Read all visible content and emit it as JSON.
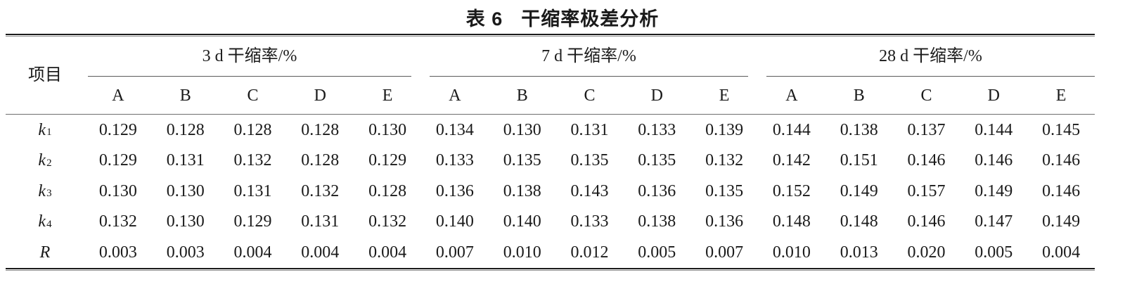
{
  "page": {
    "background": "#ffffff",
    "text_color": "#1a1a1a",
    "thick_rule_color": "#1b1b1b",
    "thin_rule_color": "#6e6e6e"
  },
  "title": {
    "prefix": "表 6",
    "text": "干缩率极差分析"
  },
  "table": {
    "item_header": "项目",
    "groups": [
      {
        "label": "3 d 干缩率/%",
        "subcols": [
          "A",
          "B",
          "C",
          "D",
          "E"
        ]
      },
      {
        "label": "7 d 干缩率/%",
        "subcols": [
          "A",
          "B",
          "C",
          "D",
          "E"
        ]
      },
      {
        "label": "28 d 干缩率/%",
        "subcols": [
          "A",
          "B",
          "C",
          "D",
          "E"
        ]
      }
    ],
    "rows": [
      {
        "label": "k",
        "subscript": "1",
        "values": [
          "0.129",
          "0.128",
          "0.128",
          "0.128",
          "0.130",
          "0.134",
          "0.130",
          "0.131",
          "0.133",
          "0.139",
          "0.144",
          "0.138",
          "0.137",
          "0.144",
          "0.145"
        ]
      },
      {
        "label": "k",
        "subscript": "2",
        "values": [
          "0.129",
          "0.131",
          "0.132",
          "0.128",
          "0.129",
          "0.133",
          "0.135",
          "0.135",
          "0.135",
          "0.132",
          "0.142",
          "0.151",
          "0.146",
          "0.146",
          "0.146"
        ]
      },
      {
        "label": "k",
        "subscript": "3",
        "values": [
          "0.130",
          "0.130",
          "0.131",
          "0.132",
          "0.128",
          "0.136",
          "0.138",
          "0.143",
          "0.136",
          "0.135",
          "0.152",
          "0.149",
          "0.157",
          "0.149",
          "0.146"
        ]
      },
      {
        "label": "k",
        "subscript": "4",
        "values": [
          "0.132",
          "0.130",
          "0.129",
          "0.131",
          "0.132",
          "0.140",
          "0.140",
          "0.133",
          "0.138",
          "0.136",
          "0.148",
          "0.148",
          "0.146",
          "0.147",
          "0.149"
        ]
      },
      {
        "label": "R",
        "subscript": "",
        "values": [
          "0.003",
          "0.003",
          "0.004",
          "0.004",
          "0.004",
          "0.007",
          "0.010",
          "0.012",
          "0.005",
          "0.007",
          "0.010",
          "0.013",
          "0.020",
          "0.005",
          "0.004"
        ]
      }
    ]
  }
}
